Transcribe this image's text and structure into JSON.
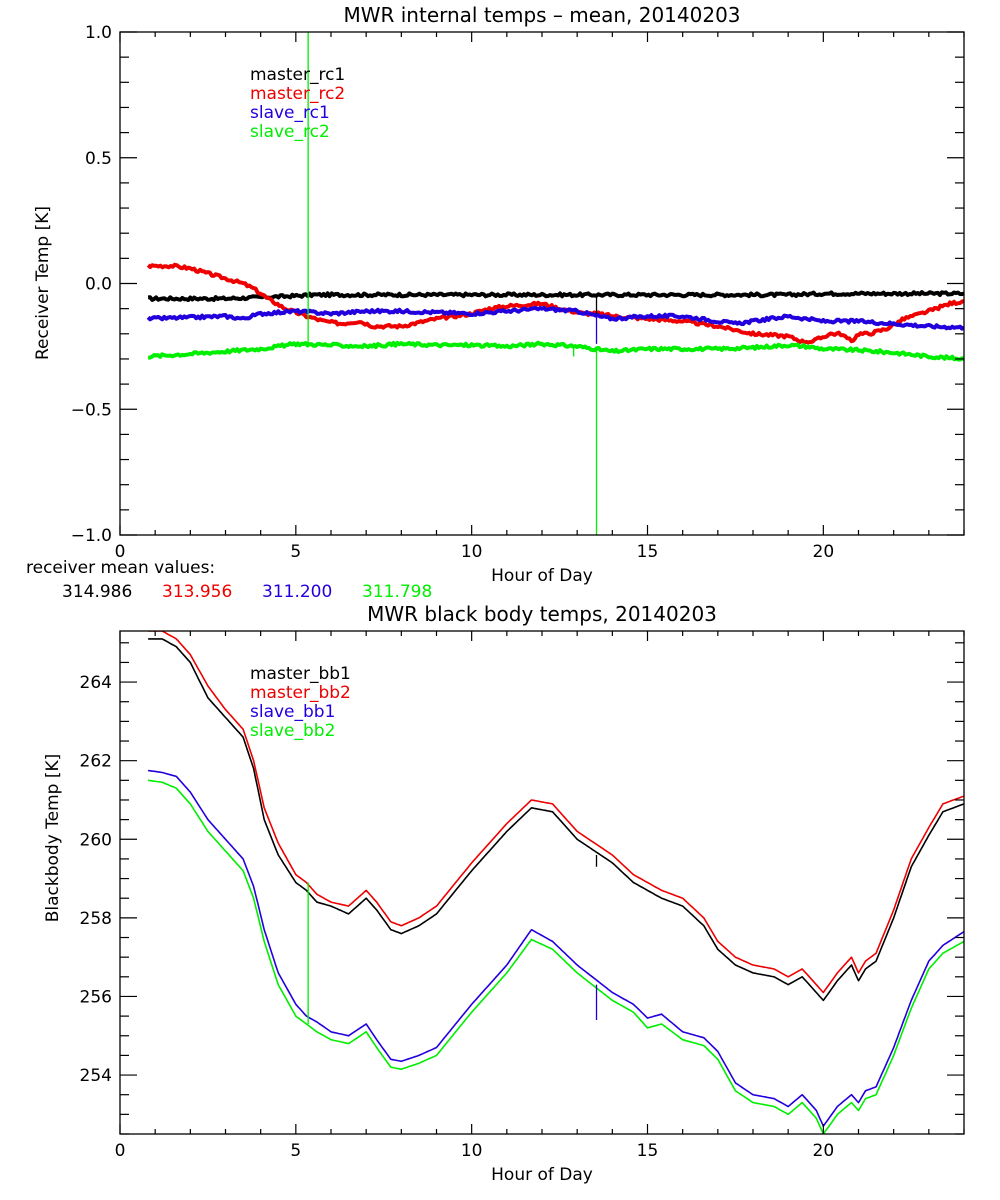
{
  "colors": {
    "black": "#000000",
    "red": "#ee0000",
    "blue": "#2200dd",
    "green": "#00ee00"
  },
  "mean_values": {
    "label": "receiver mean values:",
    "values": [
      {
        "text": "314.986",
        "color": "#000000"
      },
      {
        "text": "313.956",
        "color": "#ee0000"
      },
      {
        "text": "311.200",
        "color": "#2200dd"
      },
      {
        "text": "311.798",
        "color": "#00ee00"
      }
    ]
  },
  "chart_data": [
    {
      "type": "line",
      "title": "MWR internal temps – mean, 20140203",
      "xlabel": "Hour of Day",
      "ylabel": "Receiver Temp [K]",
      "xlim": [
        0,
        24
      ],
      "ylim": [
        -1.0,
        1.0
      ],
      "xticks": [
        0,
        5,
        10,
        15,
        20
      ],
      "xtick_labels": [
        "0",
        "5",
        "10",
        "15",
        "20"
      ],
      "yticks": [
        -1.0,
        -0.5,
        0.0,
        0.5,
        1.0
      ],
      "ytick_labels": [
        "−1.0",
        "−0.5",
        "0.0",
        "0.5",
        "1.0"
      ],
      "grid": false,
      "legend_position": "top-left",
      "series": [
        {
          "name": "master_rc1",
          "color": "#000000",
          "x": [
            0.8,
            2,
            3,
            4,
            4.9,
            5.5,
            7,
            8,
            10,
            12,
            14,
            16,
            18,
            19,
            20,
            22,
            24
          ],
          "y": [
            -0.06,
            -0.06,
            -0.06,
            -0.055,
            -0.05,
            -0.045,
            -0.045,
            -0.045,
            -0.045,
            -0.045,
            -0.045,
            -0.045,
            -0.045,
            -0.045,
            -0.04,
            -0.04,
            -0.04
          ]
        },
        {
          "name": "master_rc2",
          "color": "#ee0000",
          "x": [
            0.8,
            1.5,
            2,
            2.5,
            3,
            3.5,
            3.8,
            4.2,
            4.7,
            5.3,
            5.8,
            6.3,
            6.8,
            7.2,
            8,
            9,
            10,
            10.5,
            11,
            12,
            12.5,
            13.2,
            13.6,
            14,
            15,
            16,
            17,
            18,
            19,
            19.4,
            19.7,
            20.2,
            20.5,
            20.8,
            21,
            21.3,
            21.8,
            22.3,
            23,
            23.6,
            24
          ],
          "y": [
            0.07,
            0.07,
            0.06,
            0.04,
            0.02,
            0.0,
            -0.02,
            -0.06,
            -0.1,
            -0.13,
            -0.15,
            -0.16,
            -0.15,
            -0.17,
            -0.17,
            -0.14,
            -0.12,
            -0.1,
            -0.09,
            -0.08,
            -0.1,
            -0.12,
            -0.12,
            -0.13,
            -0.14,
            -0.15,
            -0.17,
            -0.2,
            -0.21,
            -0.23,
            -0.23,
            -0.2,
            -0.2,
            -0.23,
            -0.2,
            -0.2,
            -0.18,
            -0.14,
            -0.11,
            -0.08,
            -0.07
          ]
        },
        {
          "name": "slave_rc1",
          "color": "#2200dd",
          "x": [
            0.8,
            2,
            3,
            3.5,
            4,
            5,
            6,
            7,
            8,
            9,
            10,
            11,
            12,
            13,
            13.6,
            14,
            15,
            16,
            17,
            17.5,
            18,
            19,
            20,
            21,
            22,
            23,
            24
          ],
          "y": [
            -0.14,
            -0.135,
            -0.13,
            -0.14,
            -0.12,
            -0.11,
            -0.12,
            -0.11,
            -0.11,
            -0.115,
            -0.12,
            -0.11,
            -0.1,
            -0.11,
            -0.13,
            -0.14,
            -0.13,
            -0.13,
            -0.15,
            -0.16,
            -0.15,
            -0.13,
            -0.15,
            -0.15,
            -0.16,
            -0.17,
            -0.175
          ]
        },
        {
          "name": "slave_rc2",
          "color": "#00ee00",
          "x": [
            0.8,
            2,
            3,
            4,
            5,
            6,
            7,
            8,
            9,
            10,
            11,
            12,
            13,
            14,
            15,
            16,
            17,
            18,
            19,
            19.5,
            20,
            21,
            22,
            23,
            24
          ],
          "y": [
            -0.29,
            -0.28,
            -0.27,
            -0.26,
            -0.24,
            -0.245,
            -0.25,
            -0.24,
            -0.245,
            -0.245,
            -0.25,
            -0.24,
            -0.25,
            -0.27,
            -0.26,
            -0.26,
            -0.26,
            -0.255,
            -0.245,
            -0.25,
            -0.26,
            -0.265,
            -0.275,
            -0.29,
            -0.3
          ]
        }
      ],
      "spikes": [
        {
          "color": "#00ee00",
          "x": 5.35,
          "y_from": 1.0,
          "y_to": -0.24
        },
        {
          "color": "#00ee00",
          "x": 13.55,
          "y_from": -0.25,
          "y_to": -1.0
        },
        {
          "color": "#2200dd",
          "x": 13.55,
          "y_from": -0.12,
          "y_to": -0.24
        },
        {
          "color": "#000000",
          "x": 13.55,
          "y_from": -0.045,
          "y_to": -0.12
        },
        {
          "color": "#00ee00",
          "x": 12.9,
          "y_from": -0.25,
          "y_to": -0.29
        }
      ]
    },
    {
      "type": "line",
      "title": "MWR black body temps, 20140203",
      "xlabel": "Hour of Day",
      "ylabel": "Blackbody Temp [K]",
      "xlim": [
        0,
        24
      ],
      "ylim": [
        252.5,
        265.3
      ],
      "xticks": [
        0,
        5,
        10,
        15,
        20
      ],
      "xtick_labels": [
        "0",
        "5",
        "10",
        "15",
        "20"
      ],
      "yticks": [
        254,
        256,
        258,
        260,
        262,
        264
      ],
      "ytick_labels": [
        "254",
        "256",
        "258",
        "260",
        "262",
        "264"
      ],
      "grid": false,
      "legend_position": "top-left",
      "series": [
        {
          "name": "master_bb1",
          "color": "#000000",
          "x": [
            0.8,
            1.2,
            1.6,
            2,
            2.5,
            3,
            3.5,
            3.8,
            4.1,
            4.5,
            5,
            5.3,
            5.6,
            6,
            6.5,
            7,
            7.3,
            7.7,
            8,
            8.5,
            9,
            10,
            11,
            11.7,
            12.3,
            13,
            14,
            14.6,
            15,
            15.4,
            16,
            16.6,
            17,
            17.5,
            18,
            18.6,
            19,
            19.4,
            19.8,
            20,
            20.4,
            20.8,
            21,
            21.2,
            21.5,
            22,
            22.5,
            23,
            23.4,
            24
          ],
          "y": [
            265.1,
            265.1,
            264.9,
            264.5,
            263.6,
            263.1,
            262.6,
            261.8,
            260.5,
            259.6,
            258.9,
            258.7,
            258.4,
            258.3,
            258.1,
            258.5,
            258.2,
            257.7,
            257.6,
            257.8,
            258.1,
            259.2,
            260.2,
            260.8,
            260.7,
            260.0,
            259.4,
            258.9,
            258.7,
            258.5,
            258.3,
            257.8,
            257.2,
            256.8,
            256.6,
            256.5,
            256.3,
            256.5,
            256.1,
            255.9,
            256.4,
            256.8,
            256.4,
            256.7,
            256.9,
            258.0,
            259.3,
            260.1,
            260.7,
            260.9
          ]
        },
        {
          "name": "master_bb2",
          "color": "#ee0000",
          "x": [
            0.8,
            1.2,
            1.6,
            2,
            2.5,
            3,
            3.5,
            3.8,
            4.1,
            4.5,
            5,
            5.3,
            5.6,
            6,
            6.5,
            7,
            7.3,
            7.7,
            8,
            8.5,
            9,
            10,
            11,
            11.7,
            12.3,
            13,
            14,
            14.6,
            15,
            15.4,
            16,
            16.6,
            17,
            17.5,
            18,
            18.6,
            19,
            19.4,
            19.8,
            20,
            20.4,
            20.8,
            21,
            21.2,
            21.5,
            22,
            22.5,
            23,
            23.4,
            24
          ],
          "y": [
            265.3,
            265.3,
            265.1,
            264.7,
            263.9,
            263.3,
            262.8,
            262.0,
            260.8,
            259.9,
            259.1,
            258.9,
            258.6,
            258.4,
            258.3,
            258.7,
            258.4,
            257.9,
            257.8,
            258.0,
            258.3,
            259.4,
            260.4,
            261.0,
            260.9,
            260.2,
            259.6,
            259.1,
            258.9,
            258.7,
            258.5,
            258.0,
            257.4,
            257.0,
            256.8,
            256.7,
            256.5,
            256.7,
            256.3,
            256.1,
            256.6,
            257.0,
            256.6,
            256.9,
            257.1,
            258.2,
            259.5,
            260.3,
            260.9,
            261.1
          ]
        },
        {
          "name": "slave_bb1",
          "color": "#2200dd",
          "x": [
            0.8,
            1.2,
            1.6,
            2,
            2.5,
            3,
            3.5,
            3.8,
            4.1,
            4.5,
            5,
            5.3,
            5.6,
            6,
            6.5,
            7,
            7.3,
            7.7,
            8,
            8.5,
            9,
            10,
            11,
            11.7,
            12.3,
            13,
            14,
            14.6,
            15,
            15.4,
            16,
            16.6,
            17,
            17.5,
            18,
            18.6,
            19,
            19.4,
            19.8,
            20,
            20.4,
            20.8,
            21,
            21.2,
            21.5,
            22,
            22.5,
            23,
            23.4,
            24
          ],
          "y": [
            261.75,
            261.7,
            261.6,
            261.2,
            260.5,
            260.0,
            259.5,
            258.8,
            257.7,
            256.6,
            255.8,
            255.5,
            255.35,
            255.1,
            255.0,
            255.3,
            254.9,
            254.4,
            254.35,
            254.5,
            254.7,
            255.8,
            256.8,
            257.7,
            257.4,
            256.8,
            256.1,
            255.8,
            255.45,
            255.55,
            255.1,
            254.95,
            254.6,
            253.8,
            253.5,
            253.4,
            253.2,
            253.5,
            253.1,
            252.7,
            253.2,
            253.5,
            253.3,
            253.6,
            253.7,
            254.7,
            255.9,
            256.9,
            257.3,
            257.65
          ]
        },
        {
          "name": "slave_bb2",
          "color": "#00ee00",
          "x": [
            0.8,
            1.2,
            1.6,
            2,
            2.5,
            3,
            3.5,
            3.8,
            4.1,
            4.5,
            5,
            5.3,
            5.6,
            6,
            6.5,
            7,
            7.3,
            7.7,
            8,
            8.5,
            9,
            10,
            11,
            11.7,
            12.3,
            13,
            14,
            14.6,
            15,
            15.4,
            16,
            16.6,
            17,
            17.5,
            18,
            18.6,
            19,
            19.4,
            19.8,
            20,
            20.4,
            20.8,
            21,
            21.2,
            21.5,
            22,
            22.5,
            23,
            23.4,
            24
          ],
          "y": [
            261.5,
            261.45,
            261.3,
            260.9,
            260.2,
            259.7,
            259.2,
            258.5,
            257.4,
            256.3,
            255.5,
            255.3,
            255.1,
            254.9,
            254.8,
            255.1,
            254.7,
            254.2,
            254.15,
            254.3,
            254.5,
            255.6,
            256.6,
            257.45,
            257.2,
            256.6,
            255.9,
            255.6,
            255.2,
            255.3,
            254.9,
            254.75,
            254.4,
            253.6,
            253.3,
            253.2,
            253.0,
            253.3,
            252.9,
            252.5,
            253.0,
            253.3,
            253.1,
            253.4,
            253.5,
            254.5,
            255.7,
            256.7,
            257.1,
            257.4
          ]
        }
      ],
      "spikes": [
        {
          "color": "#00ee00",
          "x": 5.35,
          "y_from": 258.9,
          "y_to": 255.3
        },
        {
          "color": "#2200dd",
          "x": 13.55,
          "y_from": 256.3,
          "y_to": 255.4
        },
        {
          "color": "#000000",
          "x": 13.55,
          "y_from": 259.6,
          "y_to": 259.3
        }
      ]
    }
  ]
}
